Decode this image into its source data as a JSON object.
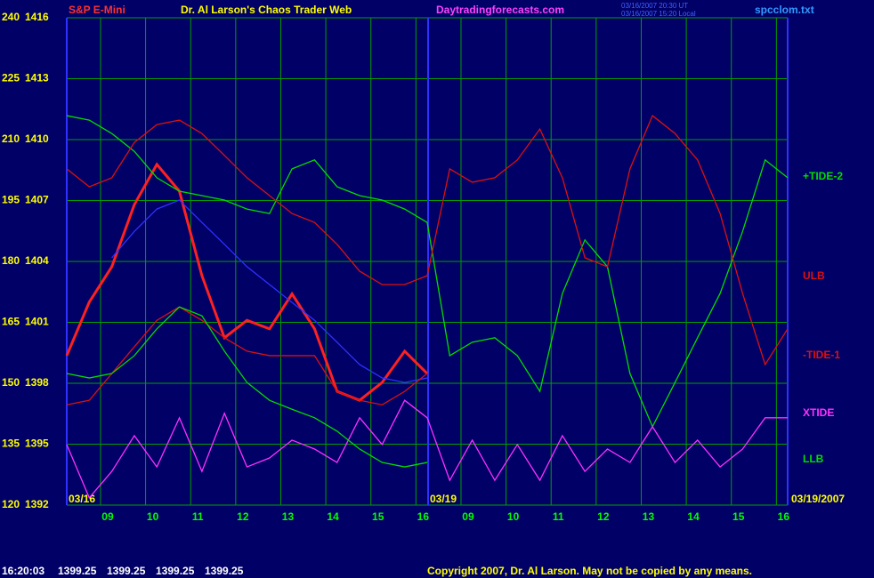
{
  "chart_data": {
    "type": "line",
    "symbol": "S&P E-Mini",
    "title": "Dr. Al Larson's Chaos Trader Web",
    "website": "Daytradingforecasts.com",
    "timestamps": [
      "03/16/2007 20:30 UT",
      "03/16/2007 15:20 Local"
    ],
    "file": "spcclom.txt",
    "date_labels": [
      "03/16",
      "03/19",
      "03/19/2007"
    ],
    "status_time": "16:20:03",
    "quote": [
      1399.25,
      1399.25,
      1399.25,
      1399.25
    ],
    "copyright": "Copyright 2007, Dr. Al Larson. May not be copied by any means.",
    "grid": true,
    "xlim": [
      0,
      16
    ],
    "xticks": [
      {
        "value": 0.75,
        "label": "09"
      },
      {
        "value": 1.75,
        "label": "10"
      },
      {
        "value": 2.75,
        "label": "11"
      },
      {
        "value": 3.75,
        "label": "12"
      },
      {
        "value": 4.75,
        "label": "13"
      },
      {
        "value": 5.75,
        "label": "14"
      },
      {
        "value": 6.75,
        "label": "15"
      },
      {
        "value": 7.75,
        "label": "16"
      },
      {
        "value": 8.75,
        "label": "09"
      },
      {
        "value": 9.75,
        "label": "10"
      },
      {
        "value": 10.75,
        "label": "11"
      },
      {
        "value": 11.75,
        "label": "12"
      },
      {
        "value": 12.75,
        "label": "13"
      },
      {
        "value": 13.75,
        "label": "14"
      },
      {
        "value": 14.75,
        "label": "15"
      },
      {
        "value": 15.75,
        "label": "16"
      }
    ],
    "ylim": [
      120,
      240
    ],
    "yticks": [
      120,
      135,
      150,
      165,
      180,
      195,
      210,
      225,
      240
    ],
    "y2lim": [
      1392,
      1416
    ],
    "y2ticks": [
      1392,
      1395,
      1398,
      1401,
      1404,
      1407,
      1410,
      1413,
      1416
    ],
    "x": [
      0,
      0.5,
      1,
      1.5,
      2,
      2.5,
      3,
      3.5,
      4,
      4.5,
      5,
      5.5,
      6,
      6.5,
      7,
      7.5,
      8,
      8.5,
      9,
      9.5,
      10,
      10.5,
      11,
      11.5,
      12,
      12.5,
      13,
      13.5,
      14,
      14.5,
      15,
      15.5,
      16
    ],
    "series": [
      {
        "color": "#ff2020",
        "values": [
          156.8,
          170,
          178.7,
          194,
          203.9,
          197.3,
          176.5,
          161.2,
          165.5,
          163.4,
          172,
          163.4,
          148,
          145.8,
          150.2,
          157.9,
          152.4,
          null,
          null,
          null,
          null,
          null,
          null,
          null,
          null,
          null,
          null,
          null,
          null,
          null,
          null,
          null,
          null
        ]
      },
      {
        "color": "#3030ff",
        "values": [
          null,
          null,
          180.9,
          187.4,
          192.9,
          195.1,
          189.6,
          184.2,
          178.7,
          174.3,
          169.9,
          165.5,
          160.1,
          154.6,
          151.3,
          150.2,
          151.3,
          null,
          null,
          null,
          null,
          null,
          null,
          null,
          null,
          null,
          null,
          null,
          null,
          null,
          null,
          null,
          null
        ]
      },
      {
        "name": "+TIDE-2",
        "color": "#00dd00",
        "values": [
          215.9,
          214.8,
          211.5,
          207.1,
          200.6,
          197.3,
          196.2,
          195.1,
          192.9,
          191.8,
          202.8,
          205,
          198.4,
          196.2,
          195.1,
          192.9,
          189.6,
          156.8,
          160.1,
          161.2,
          156.8,
          148,
          172.1,
          185.3,
          178.7,
          152.4,
          139.3,
          150.2,
          161.2,
          172.1,
          187.4,
          205,
          200.6
        ]
      },
      {
        "name": "ULB",
        "color": "#dd1010",
        "values": [
          202.8,
          198.4,
          200.6,
          209.3,
          213.7,
          214.8,
          211.5,
          206.1,
          200.6,
          196.2,
          191.8,
          189.6,
          184.2,
          177.6,
          174.3,
          174.3,
          176.5,
          202.8,
          199.5,
          200.6,
          205,
          212.6,
          200.6,
          180.9,
          178.7,
          202.8,
          215.9,
          211.5,
          205,
          191.8,
          172.1,
          154.6,
          163.4
        ]
      },
      {
        "name": "-TIDE-1",
        "color": "#dd1010",
        "values": [
          144.7,
          145.8,
          152.4,
          159,
          165.5,
          168.8,
          165.5,
          161.2,
          157.9,
          156.8,
          156.8,
          156.8,
          148,
          145.8,
          144.7,
          148,
          152.4,
          null,
          null,
          null,
          null,
          null,
          null,
          null,
          null,
          null,
          null,
          null,
          null,
          null,
          null,
          null,
          null
        ]
      },
      {
        "name": "XTIDE",
        "color": "#ff30ff",
        "values": [
          134.9,
          121.8,
          128.3,
          137.1,
          129.4,
          141.5,
          128.3,
          142.6,
          129.4,
          131.6,
          136,
          133.8,
          130.5,
          141.5,
          134.9,
          145.8,
          141.5,
          126.1,
          136,
          126.1,
          134.9,
          126.1,
          137.1,
          128.3,
          133.8,
          130.5,
          139.3,
          130.5,
          136,
          129.4,
          133.8,
          141.5,
          141.5
        ]
      },
      {
        "name": "LLB",
        "color": "#00dd00",
        "values": [
          152.4,
          151.3,
          152.4,
          156.8,
          163.4,
          168.8,
          166.6,
          157.9,
          150.2,
          145.8,
          143.6,
          141.5,
          138.2,
          133.8,
          130.5,
          129.4,
          130.5,
          null,
          null,
          null,
          null,
          null,
          null,
          null,
          null,
          null,
          null,
          null,
          null,
          null,
          null,
          null,
          null
        ]
      }
    ]
  }
}
